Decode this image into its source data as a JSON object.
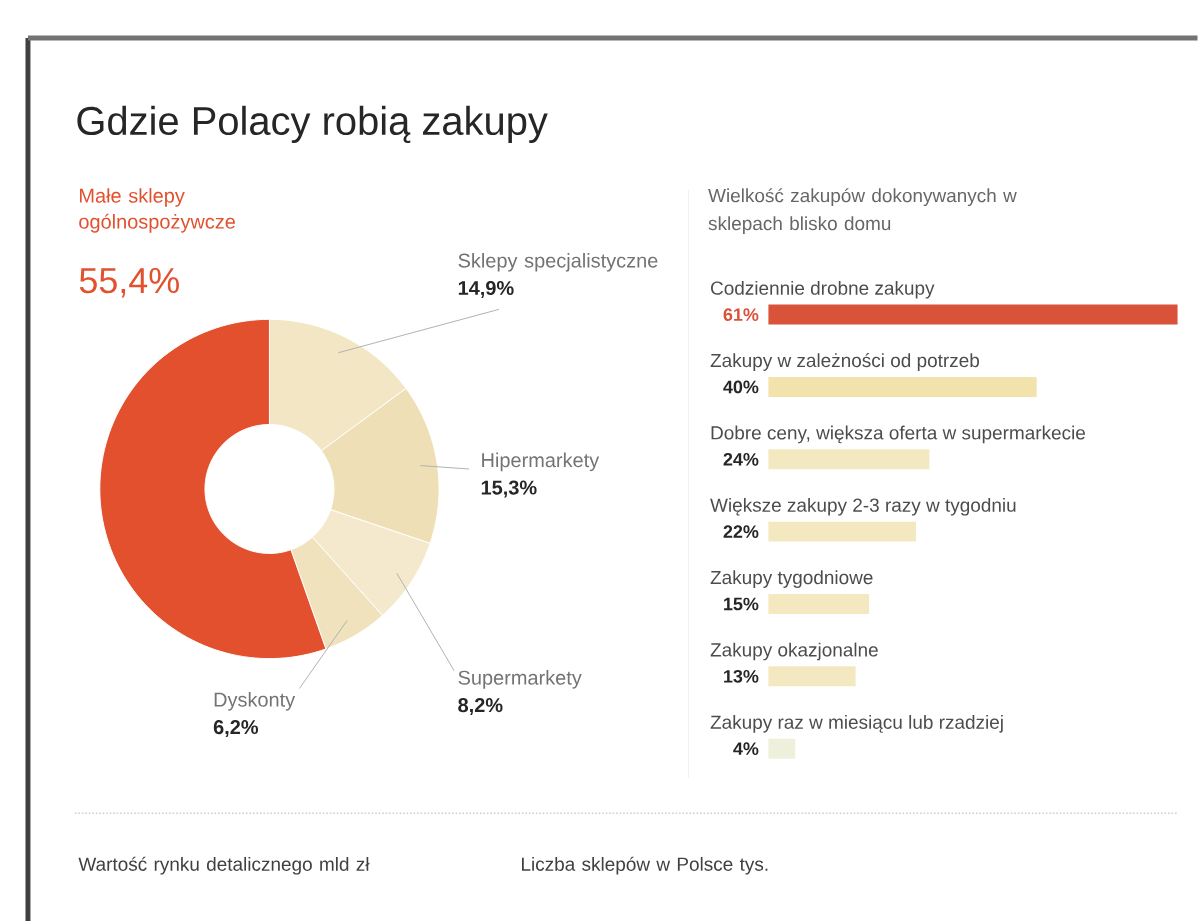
{
  "chart_data": [
    {
      "type": "donut",
      "title": "Gdzie Polacy robią zakupy",
      "categories": [
        "Sklepy specjalistyczne",
        "Hipermarkety",
        "Supermarkety",
        "Dyskonty",
        "Małe sklepy ogólnospożywcze"
      ],
      "values": [
        14.9,
        15.3,
        8.2,
        6.2,
        55.4
      ],
      "value_labels": [
        "14,9%",
        "15,3%",
        "8,2%",
        "6,2%",
        "55,4%"
      ],
      "colors": [
        "#f2e6c4",
        "#efdfb6",
        "#f4e9cc",
        "#f0e2bd",
        "#e2502e"
      ],
      "annotations": [
        "Wartość rynku detalicznego mld zł",
        "Liczba sklepów w Polsce tys."
      ]
    },
    {
      "type": "bar",
      "orientation": "horizontal",
      "title": "Wielkość zakupów dokonywanych w sklepach blisko domu",
      "categories": [
        "Codziennie drobne zakupy",
        "Zakupy w zależności od potrzeb",
        "Dobre ceny, większa oferta w supermarkecie",
        "Większe zakupy 2-3 razy w tygodniu",
        "Zakupy tygodniowe",
        "Zakupy okazjonalne",
        "Zakupy raz w miesiącu lub rzadziej"
      ],
      "values": [
        61,
        40,
        24,
        22,
        15,
        13,
        4
      ],
      "value_labels": [
        "61%",
        "40%",
        "24%",
        "22%",
        "15%",
        "13%",
        "4%"
      ],
      "colors": [
        "#d9533a",
        "#f1e3ab",
        "#f3e8c0",
        "#f3e8c0",
        "#f3e8c0",
        "#f3e8c0",
        "#eef0dc"
      ],
      "xlim": [
        0,
        61
      ]
    }
  ]
}
